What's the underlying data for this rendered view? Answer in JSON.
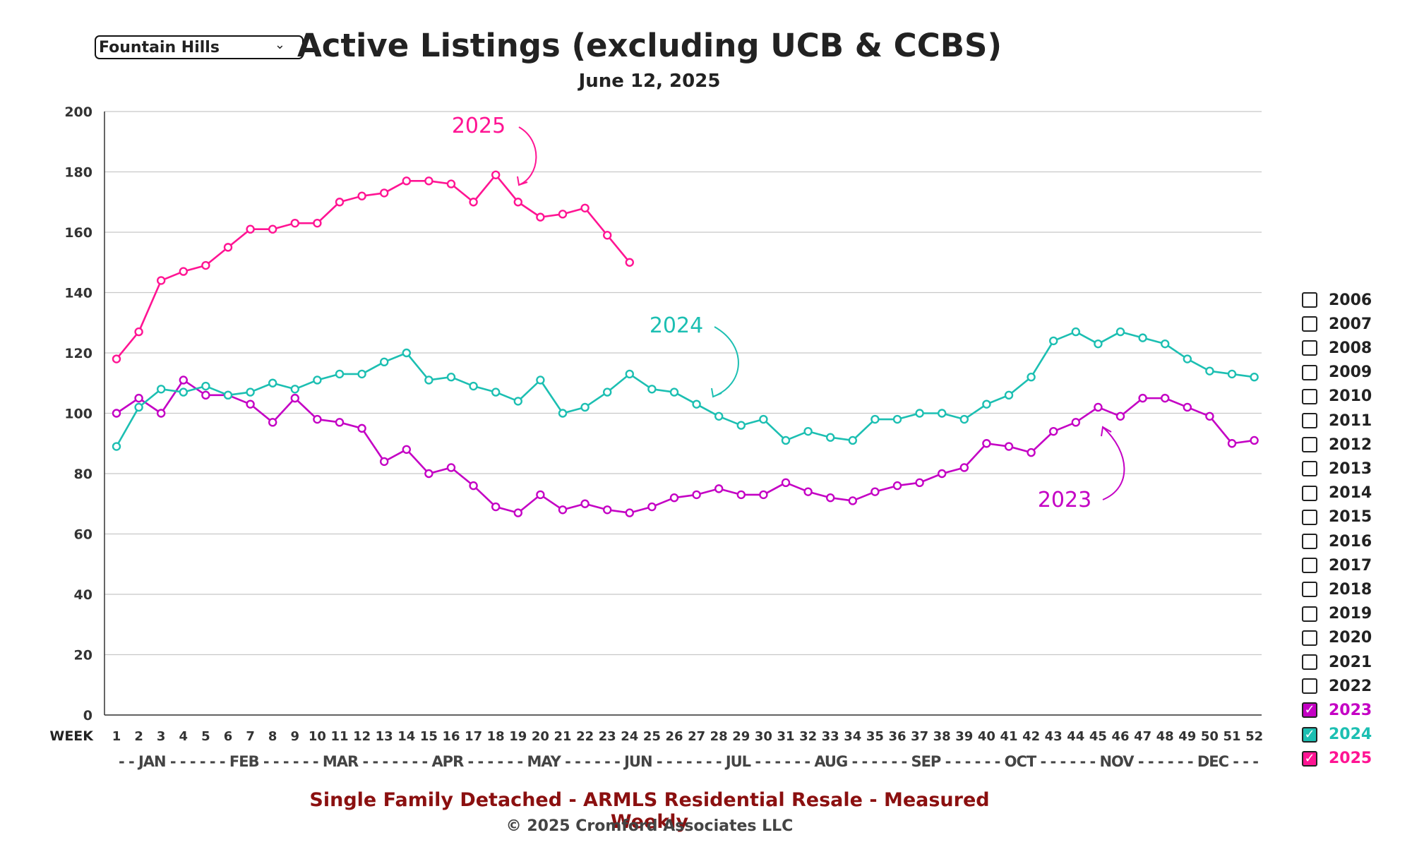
{
  "selector": {
    "value": "Fountain Hills",
    "chevron_icon": "chevron-down-icon"
  },
  "title": "Active Listings (excluding UCB & CCBS)",
  "subtitle": "June 12, 2025",
  "footer": {
    "line1": "Single Family Detached - ARMLS Residential Resale - Measured Weekly",
    "line2": "© 2025 Cromford Associates LLC"
  },
  "colors": {
    "2023": "#c400c4",
    "2024": "#1cbfb2",
    "2025": "#ff1493"
  },
  "legend": [
    {
      "label": "2006",
      "checked": false
    },
    {
      "label": "2007",
      "checked": false
    },
    {
      "label": "2008",
      "checked": false
    },
    {
      "label": "2009",
      "checked": false
    },
    {
      "label": "2010",
      "checked": false
    },
    {
      "label": "2011",
      "checked": false
    },
    {
      "label": "2012",
      "checked": false
    },
    {
      "label": "2013",
      "checked": false
    },
    {
      "label": "2014",
      "checked": false
    },
    {
      "label": "2015",
      "checked": false
    },
    {
      "label": "2016",
      "checked": false
    },
    {
      "label": "2017",
      "checked": false
    },
    {
      "label": "2018",
      "checked": false
    },
    {
      "label": "2019",
      "checked": false
    },
    {
      "label": "2020",
      "checked": false
    },
    {
      "label": "2021",
      "checked": false
    },
    {
      "label": "2022",
      "checked": false
    },
    {
      "label": "2023",
      "checked": true
    },
    {
      "label": "2024",
      "checked": true
    },
    {
      "label": "2025",
      "checked": true
    }
  ],
  "chart_data": {
    "type": "line",
    "xlabel": "WEEK",
    "ylim": [
      0,
      200
    ],
    "yticks": [
      0,
      20,
      40,
      60,
      80,
      100,
      120,
      140,
      160,
      180,
      200
    ],
    "grid": true,
    "weeks": [
      1,
      2,
      3,
      4,
      5,
      6,
      7,
      8,
      9,
      10,
      11,
      12,
      13,
      14,
      15,
      16,
      17,
      18,
      19,
      20,
      21,
      22,
      23,
      24,
      25,
      26,
      27,
      28,
      29,
      30,
      31,
      32,
      33,
      34,
      35,
      36,
      37,
      38,
      39,
      40,
      41,
      42,
      43,
      44,
      45,
      46,
      47,
      48,
      49,
      50,
      51,
      52
    ],
    "month_labels": "- - JAN - - - - - - FEB - - - - - - MAR - - - - - - - APR - - - - - - MAY - - - - - - JUN - - - - - - - JUL - - - - - - AUG - - - - - - SEP - - - - - - OCT - - - - - - NOV - - - - - - DEC - - -",
    "series": [
      {
        "name": "2023",
        "color": "#c400c4",
        "values": [
          100,
          105,
          100,
          111,
          106,
          106,
          103,
          97,
          105,
          98,
          97,
          95,
          84,
          88,
          80,
          82,
          76,
          69,
          67,
          73,
          68,
          70,
          68,
          67,
          69,
          72,
          73,
          75,
          73,
          73,
          77,
          74,
          72,
          71,
          74,
          76,
          77,
          80,
          82,
          90,
          89,
          87,
          94,
          97,
          102,
          99,
          105,
          105,
          102,
          99,
          90,
          91
        ]
      },
      {
        "name": "2024",
        "color": "#1cbfb2",
        "values": [
          89,
          102,
          108,
          107,
          109,
          106,
          107,
          110,
          108,
          111,
          113,
          113,
          117,
          120,
          111,
          112,
          109,
          107,
          104,
          111,
          100,
          102,
          107,
          113,
          108,
          107,
          103,
          99,
          96,
          98,
          91,
          94,
          92,
          91,
          98,
          98,
          100,
          100,
          98,
          103,
          106,
          112,
          124,
          127,
          123,
          127,
          125,
          123,
          118,
          114,
          113,
          112
        ]
      },
      {
        "name": "2025",
        "color": "#ff1493",
        "values": [
          118,
          127,
          144,
          147,
          149,
          155,
          161,
          161,
          163,
          163,
          170,
          172,
          173,
          177,
          177,
          176,
          170,
          179,
          170,
          165,
          166,
          168,
          159,
          150
        ]
      }
    ],
    "annotations": [
      {
        "text": "2025",
        "color": "#ff1493"
      },
      {
        "text": "2024",
        "color": "#1cbfb2"
      },
      {
        "text": "2023",
        "color": "#c400c4"
      }
    ]
  }
}
